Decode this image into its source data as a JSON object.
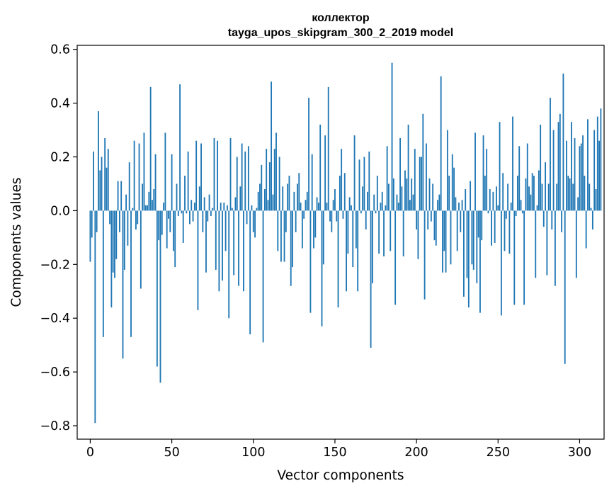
{
  "chart_data": {
    "type": "bar",
    "title_line1": "коллектор",
    "title_line2": "tayga_upos_skipgram_300_2_2019 model",
    "xlabel": "Vector components",
    "ylabel": "Components values",
    "xlim": [
      -8,
      315
    ],
    "ylim": [
      -0.85,
      0.615
    ],
    "xticks": [
      0,
      50,
      100,
      150,
      200,
      250,
      300
    ],
    "xtick_labels": [
      "0",
      "50",
      "100",
      "150",
      "200",
      "250",
      "300"
    ],
    "yticks": [
      0.6,
      0.4,
      0.2,
      0.0,
      -0.2,
      -0.4,
      -0.6,
      -0.8
    ],
    "ytick_labels": [
      "0.6",
      "0.4",
      "0.2",
      "0.0",
      "−0.2",
      "−0.4",
      "−0.6",
      "−0.8"
    ],
    "bar_color": "#1f77b4",
    "values": [
      -0.19,
      -0.1,
      0.22,
      -0.79,
      -0.08,
      0.37,
      0.15,
      0.2,
      -0.47,
      0.27,
      0.16,
      0.23,
      -0.05,
      -0.36,
      -0.23,
      -0.25,
      -0.18,
      0.11,
      -0.08,
      0.11,
      -0.55,
      -0.22,
      0.06,
      -0.13,
      0.18,
      -0.47,
      0.01,
      0.26,
      -0.07,
      -0.05,
      0.25,
      -0.29,
      0.1,
      0.29,
      0.02,
      0.02,
      0.07,
      0.46,
      0.04,
      0.08,
      0.21,
      -0.58,
      -0.11,
      -0.64,
      -0.09,
      0.03,
      0.29,
      -0.14,
      -0.03,
      -0.08,
      0.21,
      -0.15,
      -0.21,
      0.1,
      -0.02,
      0.47,
      -0.01,
      -0.12,
      0.13,
      -0.01,
      0.22,
      -0.05,
      0.04,
      -0.04,
      0.03,
      0.26,
      -0.37,
      0.09,
      0.25,
      -0.08,
      0.05,
      -0.23,
      -0.04,
      0.06,
      -0.02,
      0.01,
      0.27,
      -0.22,
      0.26,
      -0.3,
      0.03,
      -0.26,
      0.03,
      -0.15,
      0.02,
      -0.4,
      0.27,
      0.01,
      -0.24,
      0.05,
      0.2,
      -0.28,
      0.09,
      0.25,
      -0.3,
      0.22,
      -0.05,
      0.24,
      -0.46,
      0.02,
      -0.08,
      -0.1,
      0.01,
      0.07,
      0.1,
      0.17,
      -0.49,
      0.08,
      0.23,
      0.04,
      0.18,
      0.48,
      0.06,
      0.23,
      0.29,
      -0.15,
      0.2,
      -0.19,
      0.09,
      -0.19,
      -0.08,
      0.1,
      0.13,
      -0.28,
      -0.21,
      0.07,
      -0.08,
      0.1,
      0.14,
      0.03,
      -0.14,
      -0.03,
      0.04,
      0.07,
      0.42,
      -0.38,
      0.21,
      -0.14,
      -0.1,
      0.05,
      0.03,
      0.32,
      -0.43,
      -0.2,
      0.28,
      0.03,
      0.46,
      -0.04,
      -0.08,
      0.04,
      0.08,
      -0.04,
      -0.36,
      0.13,
      0.23,
      -0.03,
      0.14,
      -0.3,
      -0.16,
      0.05,
      0.02,
      -0.21,
      0.28,
      -0.14,
      -0.3,
      0.19,
      -0.01,
      0.09,
      0.2,
      -0.07,
      0.07,
      0.22,
      -0.51,
      -0.27,
      0.06,
      -0.01,
      0.13,
      -0.16,
      0.03,
      0.07,
      -0.17,
      0.02,
      0.24,
      0.1,
      -0.15,
      0.55,
      0.12,
      -0.35,
      0.06,
      0.03,
      0.27,
      0.09,
      -0.17,
      0.15,
      0.12,
      0.32,
      0.04,
      0.12,
      0.06,
      0.23,
      -0.07,
      -0.18,
      0.2,
      0.2,
      0.36,
      -0.33,
      0.25,
      -0.07,
      0.12,
      -0.04,
      0.1,
      -0.11,
      -0.13,
      0.04,
      0.06,
      0.5,
      -0.23,
      -0.15,
      -0.23,
      0.3,
      0.13,
      -0.2,
      0.21,
      0.16,
      0.05,
      -0.15,
      0.03,
      -0.08,
      0.04,
      -0.32,
      0.08,
      -0.25,
      -0.36,
      0.11,
      -0.2,
      -0.22,
      0.29,
      -0.27,
      -0.1,
      -0.38,
      -0.11,
      0.28,
      0.13,
      0.23,
      -0.01,
      0.08,
      -0.13,
      0.07,
      -0.12,
      0.09,
      0.02,
      0.33,
      -0.39,
      0.14,
      -0.15,
      -0.03,
      0.1,
      -0.16,
      0.03,
      0.35,
      -0.35,
      -0.02,
      0.13,
      0.24,
      0.04,
      -0.01,
      -0.35,
      0.12,
      0.25,
      0.09,
      0.06,
      0.14,
      0.13,
      -0.25,
      0.02,
      0.15,
      0.32,
      0.1,
      -0.06,
      0.18,
      -0.24,
      0.1,
      0.42,
      -0.07,
      0.3,
      -0.28,
      0.1,
      0.33,
      0.36,
      -0.08,
      0.51,
      -0.57,
      0.26,
      0.13,
      0.12,
      0.33,
      0.1,
      0.27,
      -0.25,
      0.05,
      0.24,
      0.25,
      0.28,
      0.13,
      -0.14,
      0.34,
      0.1,
      0.01,
      -0.07,
      0.3,
      0.08,
      0.35,
      0.26,
      0.38
    ]
  }
}
